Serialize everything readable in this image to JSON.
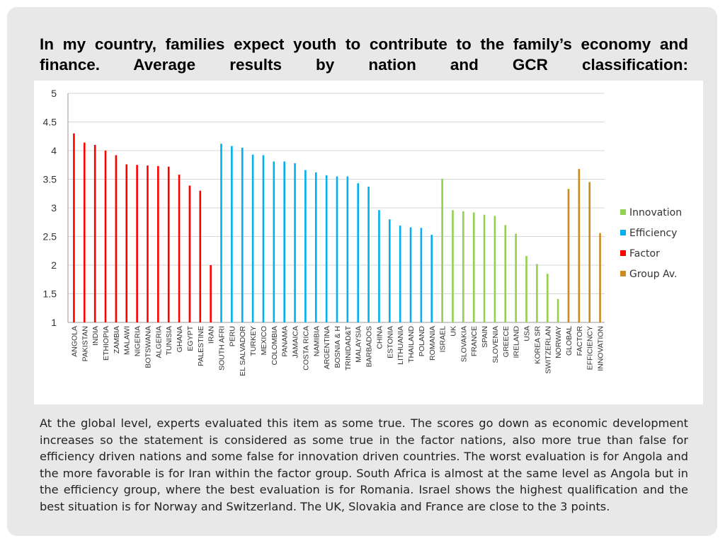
{
  "slide": {
    "title": "In my country, families expect youth to contribute to the family’s economy and finance. Average results by nation and GCR classification:",
    "caption": "At the global level, experts evaluated this item as some true. The scores go down as economic development increases so the statement is considered as some true in the factor nations, also more true than false for efficiency driven nations and some false for innovation driven countries. The worst evaluation is for Angola and the more favorable is for Iran within the factor group. South Africa is almost at the same level as Angola but in the efficiency group, where the best evaluation is for Romania. Israel shows the highest qualification and the best situation is for Norway and Switzerland. The UK, Slovakia and France are close to the 3 points."
  },
  "chart_data": {
    "type": "bar",
    "title": "",
    "xlabel": "",
    "ylabel": "",
    "ylim": [
      1,
      5
    ],
    "yticks": [
      "1",
      "1.5",
      "2",
      "2.5",
      "3",
      "3.5",
      "4",
      "4.5",
      "5"
    ],
    "grid": true,
    "legend_position": "right",
    "categories": [
      "ANGOLA",
      "PAKISTAN",
      "INDIA",
      "ETHIOPIA",
      "ZAMBIA",
      "MALAWI",
      "NIGERIA",
      "BOTSWANA",
      "ALGERIA",
      "TUNISIA",
      "GHANA",
      "EGYPT",
      "PALESTINE",
      "IRAN",
      "SOUTH AFRI",
      "PERU",
      "EL SALVADOR",
      "TURKEY",
      "MEXICO",
      "COLOMBIA",
      "PANAMA",
      "JAMAICA",
      "COSTA RICA",
      "NAMIBIA",
      "ARGENTINA",
      "BOSNIA & H",
      "TRINIDAD&T",
      "MALAYSIA",
      "BARBADOS",
      "CHINA",
      "ESTONIA",
      "LITHUANIA",
      "THAILAND",
      "POLAND",
      "ROMANIA",
      "ISRAEL",
      "UK",
      "SLOVAKIA",
      "FRANCE",
      "SPAIN",
      "SLOVENIA",
      "GREECE",
      "IRELAND",
      "USA",
      "KOREA SR",
      "SWITZERLAN",
      "NORWAY",
      "GLOBAL",
      "FACTOR",
      "EFFICIENCY",
      "INNOVATION"
    ],
    "series": [
      {
        "name": "Innovation",
        "color": "#92d050",
        "values": [
          null,
          null,
          null,
          null,
          null,
          null,
          null,
          null,
          null,
          null,
          null,
          null,
          null,
          null,
          null,
          null,
          null,
          null,
          null,
          null,
          null,
          null,
          null,
          null,
          null,
          null,
          null,
          null,
          null,
          null,
          null,
          null,
          null,
          null,
          null,
          3.51,
          2.96,
          2.94,
          2.92,
          2.88,
          2.86,
          2.7,
          2.55,
          2.16,
          2.02,
          1.85,
          1.41,
          null,
          null,
          null,
          null
        ]
      },
      {
        "name": "Efficiency",
        "color": "#00b0f0",
        "values": [
          null,
          null,
          null,
          null,
          null,
          null,
          null,
          null,
          null,
          null,
          null,
          null,
          null,
          null,
          4.12,
          4.08,
          4.05,
          3.93,
          3.92,
          3.81,
          3.81,
          3.78,
          3.66,
          3.62,
          3.57,
          3.55,
          3.55,
          3.43,
          3.37,
          2.96,
          2.8,
          2.69,
          2.66,
          2.65,
          2.53,
          null,
          null,
          null,
          null,
          null,
          null,
          null,
          null,
          null,
          null,
          null,
          null,
          null,
          null,
          null,
          null
        ]
      },
      {
        "name": "Factor",
        "color": "#ff0000",
        "values": [
          4.3,
          4.14,
          4.1,
          4.0,
          3.92,
          3.76,
          3.75,
          3.74,
          3.73,
          3.72,
          3.58,
          3.39,
          3.3,
          2.0,
          null,
          null,
          null,
          null,
          null,
          null,
          null,
          null,
          null,
          null,
          null,
          null,
          null,
          null,
          null,
          null,
          null,
          null,
          null,
          null,
          null,
          null,
          null,
          null,
          null,
          null,
          null,
          null,
          null,
          null,
          null,
          null,
          null,
          null,
          null,
          null,
          null
        ]
      },
      {
        "name": "Group Av.",
        "color": "#cc8b1e",
        "values": [
          null,
          null,
          null,
          null,
          null,
          null,
          null,
          null,
          null,
          null,
          null,
          null,
          null,
          null,
          null,
          null,
          null,
          null,
          null,
          null,
          null,
          null,
          null,
          null,
          null,
          null,
          null,
          null,
          null,
          null,
          null,
          null,
          null,
          null,
          null,
          null,
          null,
          null,
          null,
          null,
          null,
          null,
          null,
          null,
          null,
          null,
          null,
          3.33,
          3.68,
          3.45,
          2.56
        ]
      }
    ]
  }
}
